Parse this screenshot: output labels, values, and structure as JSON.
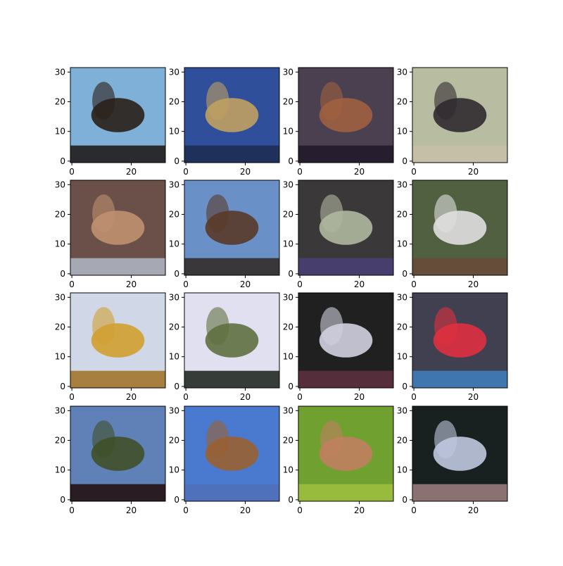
{
  "chart_data": [
    {
      "type": "image",
      "xlim": [
        -0.5,
        31.5
      ],
      "ylim": [
        31.5,
        -0.5
      ],
      "xticks": [
        0,
        20
      ],
      "yticks": [
        0,
        10,
        20,
        30
      ]
    },
    {
      "type": "image",
      "xlim": [
        -0.5,
        31.5
      ],
      "ylim": [
        31.5,
        -0.5
      ],
      "xticks": [
        0,
        20
      ],
      "yticks": [
        0,
        10,
        20,
        30
      ]
    },
    {
      "type": "image",
      "xlim": [
        -0.5,
        31.5
      ],
      "ylim": [
        31.5,
        -0.5
      ],
      "xticks": [
        0,
        20
      ],
      "yticks": [
        0,
        10,
        20,
        30
      ]
    },
    {
      "type": "image",
      "xlim": [
        -0.5,
        31.5
      ],
      "ylim": [
        31.5,
        -0.5
      ],
      "xticks": [
        0,
        20
      ],
      "yticks": [
        0,
        10,
        20,
        30
      ]
    },
    {
      "type": "image",
      "xlim": [
        -0.5,
        31.5
      ],
      "ylim": [
        31.5,
        -0.5
      ],
      "xticks": [
        0,
        20
      ],
      "yticks": [
        0,
        10,
        20,
        30
      ]
    },
    {
      "type": "image",
      "xlim": [
        -0.5,
        31.5
      ],
      "ylim": [
        31.5,
        -0.5
      ],
      "xticks": [
        0,
        20
      ],
      "yticks": [
        0,
        10,
        20,
        30
      ]
    },
    {
      "type": "image",
      "xlim": [
        -0.5,
        31.5
      ],
      "ylim": [
        31.5,
        -0.5
      ],
      "xticks": [
        0,
        20
      ],
      "yticks": [
        0,
        10,
        20,
        30
      ]
    },
    {
      "type": "image",
      "xlim": [
        -0.5,
        31.5
      ],
      "ylim": [
        31.5,
        -0.5
      ],
      "xticks": [
        0,
        20
      ],
      "yticks": [
        0,
        10,
        20,
        30
      ]
    },
    {
      "type": "image",
      "xlim": [
        -0.5,
        31.5
      ],
      "ylim": [
        31.5,
        -0.5
      ],
      "xticks": [
        0,
        20
      ],
      "yticks": [
        0,
        10,
        20,
        30
      ]
    },
    {
      "type": "image",
      "xlim": [
        -0.5,
        31.5
      ],
      "ylim": [
        31.5,
        -0.5
      ],
      "xticks": [
        0,
        20
      ],
      "yticks": [
        0,
        10,
        20,
        30
      ]
    },
    {
      "type": "image",
      "xlim": [
        -0.5,
        31.5
      ],
      "ylim": [
        31.5,
        -0.5
      ],
      "xticks": [
        0,
        20
      ],
      "yticks": [
        0,
        10,
        20,
        30
      ]
    },
    {
      "type": "image",
      "xlim": [
        -0.5,
        31.5
      ],
      "ylim": [
        31.5,
        -0.5
      ],
      "xticks": [
        0,
        20
      ],
      "yticks": [
        0,
        10,
        20,
        30
      ]
    },
    {
      "type": "image",
      "xlim": [
        -0.5,
        31.5
      ],
      "ylim": [
        31.5,
        -0.5
      ],
      "xticks": [
        0,
        20
      ],
      "yticks": [
        0,
        10,
        20,
        30
      ]
    },
    {
      "type": "image",
      "xlim": [
        -0.5,
        31.5
      ],
      "ylim": [
        31.5,
        -0.5
      ],
      "xticks": [
        0,
        20
      ],
      "yticks": [
        0,
        10,
        20,
        30
      ]
    },
    {
      "type": "image",
      "xlim": [
        -0.5,
        31.5
      ],
      "ylim": [
        31.5,
        -0.5
      ],
      "xticks": [
        0,
        20
      ],
      "yticks": [
        0,
        10,
        20,
        30
      ]
    },
    {
      "type": "image",
      "xlim": [
        -0.5,
        31.5
      ],
      "ylim": [
        31.5,
        -0.5
      ],
      "xticks": [
        0,
        20
      ],
      "yticks": [
        0,
        10,
        20,
        30
      ]
    }
  ]
}
